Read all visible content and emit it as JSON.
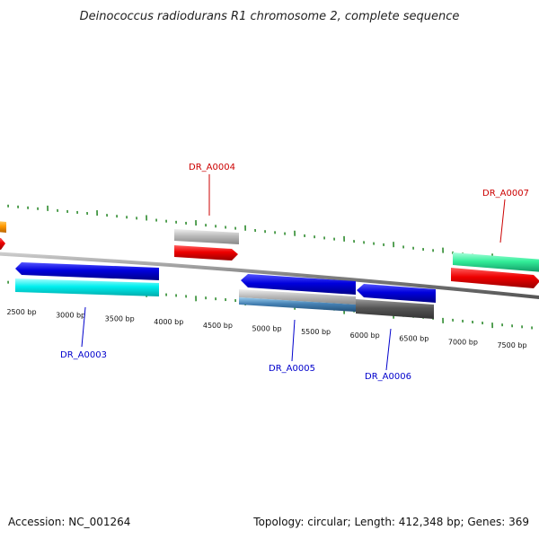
{
  "title": "Deinococcus radiodurans R1 chromosome 2, complete sequence",
  "footer": {
    "accession": "Accession: NC_001264",
    "summary": "Topology: circular; Length: 412,348 bp; Genes: 369"
  },
  "scale": {
    "ticks": [
      "2500 bp",
      "3000 bp",
      "3500 bp",
      "4000 bp",
      "4500 bp",
      "5000 bp",
      "5500 bp",
      "6000 bp",
      "6500 bp",
      "7000 bp",
      "7500 bp"
    ]
  },
  "genes": [
    {
      "label": "DR_A0003",
      "color": "#0000cc"
    },
    {
      "label": "DR_A0004",
      "color": "#cc0000"
    },
    {
      "label": "DR_A0005",
      "color": "#0000cc"
    },
    {
      "label": "DR_A0006",
      "color": "#0000cc"
    },
    {
      "label": "DR_A0007",
      "color": "#cc0000"
    }
  ],
  "colors": {
    "backbone": "#808080",
    "tick": "#2e8b2e",
    "forward_cds": "#ee0000",
    "reverse_cds": "#0000dd",
    "forward_gene": "#bbbbbb",
    "reverse_gene": "#00eeee",
    "rna": "#33ee99",
    "other_feature": "#ff9900",
    "dark_gene": "#555555",
    "steel_gene": "#4682b4"
  }
}
